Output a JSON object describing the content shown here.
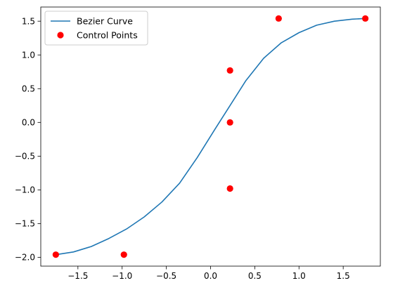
{
  "chart_data": {
    "type": "line",
    "title": "",
    "xlabel": "",
    "ylabel": "",
    "xlim": [
      -1.92,
      1.92
    ],
    "ylim": [
      -2.13,
      1.71
    ],
    "xticks": [
      -1.5,
      -1.0,
      -0.5,
      0.0,
      0.5,
      1.0,
      1.5
    ],
    "xtick_labels": [
      "−1.5",
      "−1.0",
      "−0.5",
      "0.0",
      "0.5",
      "1.0",
      "1.5"
    ],
    "yticks": [
      -2.0,
      -1.5,
      -1.0,
      -0.5,
      0.0,
      0.5,
      1.0,
      1.5
    ],
    "ytick_labels": [
      "−2.0",
      "−1.5",
      "−1.0",
      "−0.5",
      "0.0",
      "0.5",
      "1.0",
      "1.5"
    ],
    "grid": false,
    "legend_position": "top-left",
    "series": [
      {
        "name": "Bezier Curve",
        "type": "line",
        "color": "#1f77b4",
        "x": [
          -1.75,
          -1.55,
          -1.35,
          -1.15,
          -0.95,
          -0.75,
          -0.55,
          -0.35,
          -0.15,
          0.05,
          0.22,
          0.4,
          0.6,
          0.8,
          1.0,
          1.2,
          1.4,
          1.6,
          1.75
        ],
        "y": [
          -1.96,
          -1.92,
          -1.84,
          -1.72,
          -1.58,
          -1.4,
          -1.18,
          -0.9,
          -0.52,
          -0.1,
          0.25,
          0.62,
          0.95,
          1.18,
          1.33,
          1.44,
          1.5,
          1.53,
          1.54
        ]
      },
      {
        "name": "Control Points",
        "type": "scatter",
        "color": "#ff0000",
        "x": [
          -1.75,
          -0.98,
          0.22,
          0.22,
          0.22,
          0.77,
          1.75
        ],
        "y": [
          -1.96,
          -1.96,
          -0.98,
          0.0,
          0.77,
          1.54,
          1.54
        ]
      }
    ]
  }
}
